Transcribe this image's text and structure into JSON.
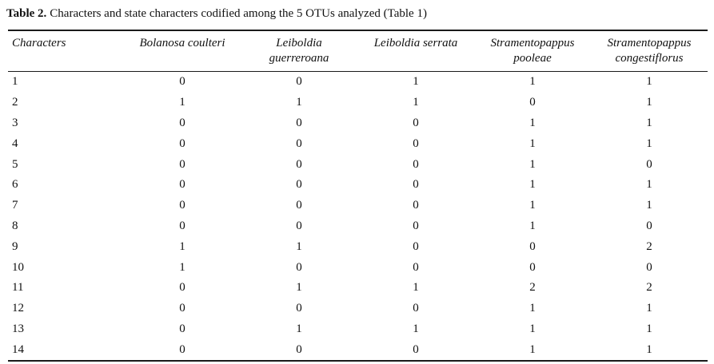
{
  "caption": {
    "label": "Table 2.",
    "text": "Characters and state characters codified among the 5 OTUs analyzed (Table 1)"
  },
  "table": {
    "header": [
      [
        "Characters"
      ],
      [
        "Bolanosa coulteri"
      ],
      [
        "Leiboldia",
        "guerreroana"
      ],
      [
        "Leiboldia serrata"
      ],
      [
        "Stramentopappus",
        "pooleae"
      ],
      [
        "Stramentopappus",
        "congestiflorus"
      ]
    ],
    "rows": [
      [
        "1",
        "0",
        "0",
        "1",
        "1",
        "1"
      ],
      [
        "2",
        "1",
        "1",
        "1",
        "0",
        "1"
      ],
      [
        "3",
        "0",
        "0",
        "0",
        "1",
        "1"
      ],
      [
        "4",
        "0",
        "0",
        "0",
        "1",
        "1"
      ],
      [
        "5",
        "0",
        "0",
        "0",
        "1",
        "0"
      ],
      [
        "6",
        "0",
        "0",
        "0",
        "1",
        "1"
      ],
      [
        "7",
        "0",
        "0",
        "0",
        "1",
        "1"
      ],
      [
        "8",
        "0",
        "0",
        "0",
        "1",
        "0"
      ],
      [
        "9",
        "1",
        "1",
        "0",
        "0",
        "2"
      ],
      [
        "10",
        "1",
        "0",
        "0",
        "0",
        "0"
      ],
      [
        "11",
        "0",
        "1",
        "1",
        "2",
        "2"
      ],
      [
        "12",
        "0",
        "0",
        "0",
        "1",
        "1"
      ],
      [
        "13",
        "0",
        "1",
        "1",
        "1",
        "1"
      ],
      [
        "14",
        "0",
        "0",
        "0",
        "1",
        "1"
      ]
    ]
  },
  "colors": {
    "text": "#111111",
    "rule": "#1a1a1a",
    "background": "#ffffff"
  }
}
